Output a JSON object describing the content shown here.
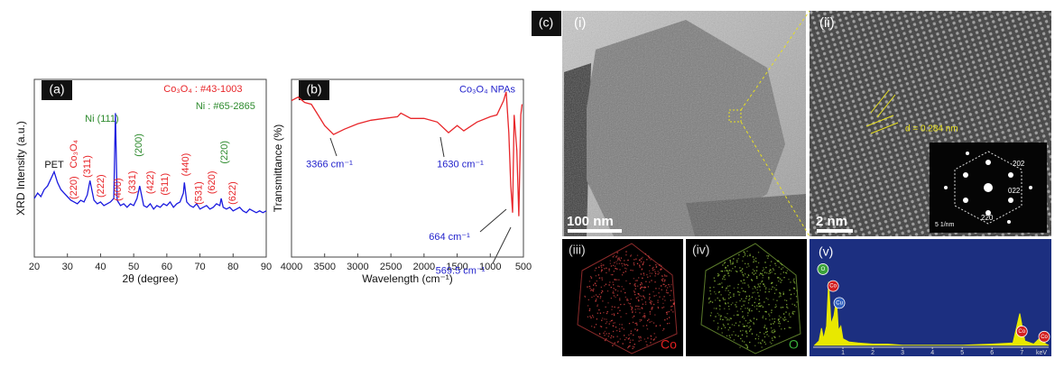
{
  "panel_labels": {
    "a": "(a)",
    "b": "(b)",
    "c": "(c)",
    "i": "(i)",
    "ii": "(ii)",
    "iii": "(iii)",
    "iv": "(iv)",
    "v": "(v)"
  },
  "images": {
    "scale_i": "100 nm",
    "scale_ii": "2 nm",
    "d_spacing": "d = 0.284 nm",
    "saed_spots": [
      "202",
      "022",
      "220"
    ],
    "saed_scale": "5 1/nm",
    "map_iii": "Co",
    "map_iv": "O"
  },
  "chart_data": [
    {
      "type": "line",
      "xlabel": "2θ (degree)",
      "ylabel": "XRD Intensity (a.u.)",
      "color": "#1a1adf",
      "x": [
        20,
        21,
        22,
        23,
        24,
        25,
        26,
        27,
        28,
        29,
        30,
        31,
        32,
        33,
        34,
        35,
        36,
        36.8,
        38,
        39,
        40,
        41,
        42,
        43,
        44,
        44.5,
        45,
        46,
        47,
        48,
        49,
        50,
        51,
        51.8,
        53,
        54,
        55,
        56,
        57,
        58,
        59,
        60,
        61,
        62,
        63,
        64,
        65,
        65.3,
        66,
        67,
        68,
        69,
        70,
        71,
        72,
        73,
        74,
        75,
        76,
        76.4,
        77,
        78,
        79,
        80,
        81,
        82,
        83,
        84,
        85,
        86,
        87,
        88,
        89,
        90
      ],
      "values": [
        33,
        36,
        34,
        38,
        40,
        44,
        48,
        42,
        38,
        36,
        34,
        32,
        31,
        30,
        32,
        31,
        35,
        43,
        32,
        30,
        31,
        29,
        30,
        31,
        33,
        81,
        32,
        29,
        30,
        28,
        30,
        29,
        33,
        40,
        29,
        28,
        30,
        27,
        29,
        28,
        30,
        29,
        31,
        28,
        30,
        31,
        36,
        42,
        31,
        29,
        28,
        30,
        27,
        28,
        29,
        27,
        28,
        30,
        29,
        33,
        28,
        27,
        28,
        26,
        27,
        28,
        26,
        25,
        27,
        26,
        25,
        26,
        25,
        26
      ],
      "xlim": [
        20,
        90
      ],
      "xticks": [
        20,
        30,
        40,
        50,
        60,
        70,
        80,
        90
      ],
      "ylim": [
        0,
        100
      ],
      "annotations": [
        {
          "text": "Co₃O₄ : #43-1003",
          "x": 70.9,
          "y": 94.4,
          "color": "#e8262a"
        },
        {
          "text": "Ni : #65-2865",
          "x": 77.7,
          "y": 84.8,
          "color": "#2e8b2e"
        },
        {
          "text": "Ni (111)",
          "x": 40.4,
          "y": 77.7,
          "color": "#2e8b2e"
        },
        {
          "text": "PET",
          "x": 26,
          "y": 51.8,
          "color": "#111111"
        }
      ],
      "peak_labels": [
        {
          "text": "Co₃O₄",
          "x": 32,
          "y": 58,
          "color": "#e8262a"
        },
        {
          "text": "(220)",
          "x": 32,
          "y": 39,
          "color": "#e8262a"
        },
        {
          "text": "(311)",
          "x": 36.1,
          "y": 51,
          "color": "#e8262a"
        },
        {
          "text": "(222)",
          "x": 40.2,
          "y": 40,
          "color": "#e8262a"
        },
        {
          "text": "(400)",
          "x": 45.3,
          "y": 38,
          "color": "#e8262a"
        },
        {
          "text": "(331)",
          "x": 49.7,
          "y": 42,
          "color": "#e8262a"
        },
        {
          "text": "(200)",
          "x": 51.6,
          "y": 63,
          "color": "#2e8b2e"
        },
        {
          "text": "(422)",
          "x": 55.1,
          "y": 42,
          "color": "#e8262a"
        },
        {
          "text": "(511)",
          "x": 59.5,
          "y": 41,
          "color": "#e8262a"
        },
        {
          "text": "(440)",
          "x": 65.8,
          "y": 52,
          "color": "#e8262a"
        },
        {
          "text": "(531)",
          "x": 69.8,
          "y": 36,
          "color": "#e8262a"
        },
        {
          "text": "(620)",
          "x": 73.7,
          "y": 42,
          "color": "#e8262a"
        },
        {
          "text": "(220)",
          "x": 77.5,
          "y": 59,
          "color": "#2e8b2e"
        },
        {
          "text": "(622)",
          "x": 80,
          "y": 36,
          "color": "#e8262a"
        }
      ]
    },
    {
      "type": "line",
      "xlabel": "Wavelength (cm⁻¹)",
      "ylabel": "Transmittance (%)",
      "color": "#e8262a",
      "x": [
        4000,
        3900,
        3800,
        3700,
        3600,
        3500,
        3366,
        3200,
        3000,
        2800,
        2600,
        2400,
        2350,
        2200,
        2000,
        1800,
        1630,
        1500,
        1400,
        1200,
        1000,
        900,
        800,
        760,
        720,
        690,
        664,
        640,
        600,
        569.5,
        540,
        520
      ],
      "values": [
        88,
        90,
        87,
        86,
        80,
        74,
        69,
        72,
        75,
        77,
        78,
        79,
        81,
        78,
        78,
        76,
        70,
        74,
        71,
        76,
        79,
        80,
        88,
        93,
        70,
        40,
        25,
        80,
        60,
        23,
        80,
        86
      ],
      "xlim": [
        4000,
        500
      ],
      "xticks": [
        4000,
        3500,
        3000,
        2500,
        2000,
        1500,
        1000,
        500
      ],
      "ylim": [
        0,
        100
      ],
      "annotations": [
        {
          "text": "Co₃O₄ NPAs",
          "x": 1045,
          "y": 94,
          "color": "#2222cc"
        },
        {
          "text": "3366 cm⁻¹",
          "x": 3428,
          "y": 52,
          "color": "#2222cc"
        },
        {
          "text": "1630 cm⁻¹",
          "x": 1453,
          "y": 52,
          "color": "#2222cc"
        },
        {
          "text": "664 cm⁻¹",
          "x": 1617,
          "y": 11,
          "color": "#2222cc"
        },
        {
          "text": "569.5 cm⁻¹",
          "x": 1453,
          "y": -8,
          "color": "#2222cc"
        }
      ],
      "peak_labels": []
    },
    {
      "type": "spectrum",
      "color": "#e8e800",
      "background": "#1c2f80",
      "xunit": "keV",
      "x": [
        0.05,
        0.2,
        0.28,
        0.35,
        0.45,
        0.52,
        0.6,
        0.7,
        0.78,
        0.85,
        0.93,
        1.0,
        1.2,
        1.5,
        2,
        2.5,
        3,
        4,
        5,
        6,
        6.7,
        6.93,
        7.1,
        7.4,
        7.65,
        7.8,
        7.9
      ],
      "values": [
        2,
        6,
        18,
        8,
        20,
        62,
        22,
        30,
        45,
        16,
        20,
        8,
        5,
        4,
        3,
        3,
        2,
        2,
        2,
        3,
        4,
        32,
        6,
        3,
        10,
        3,
        2
      ],
      "xlim": [
        0,
        7.9
      ],
      "xticks": [
        1,
        2,
        3,
        4,
        5,
        6,
        7
      ],
      "ylim": [
        0,
        100
      ],
      "peak_labels": [
        {
          "text": "O",
          "x": 0.33,
          "y": 74,
          "color": "#3aa13a"
        },
        {
          "text": "Co",
          "x": 0.67,
          "y": 58,
          "color": "#d42020"
        },
        {
          "text": "Cu",
          "x": 0.88,
          "y": 42,
          "color": "#3060c0"
        },
        {
          "text": "Co",
          "x": 7.0,
          "y": 15,
          "color": "#d42020"
        },
        {
          "text": "Co",
          "x": 7.75,
          "y": 10,
          "color": "#d42020"
        }
      ]
    }
  ]
}
